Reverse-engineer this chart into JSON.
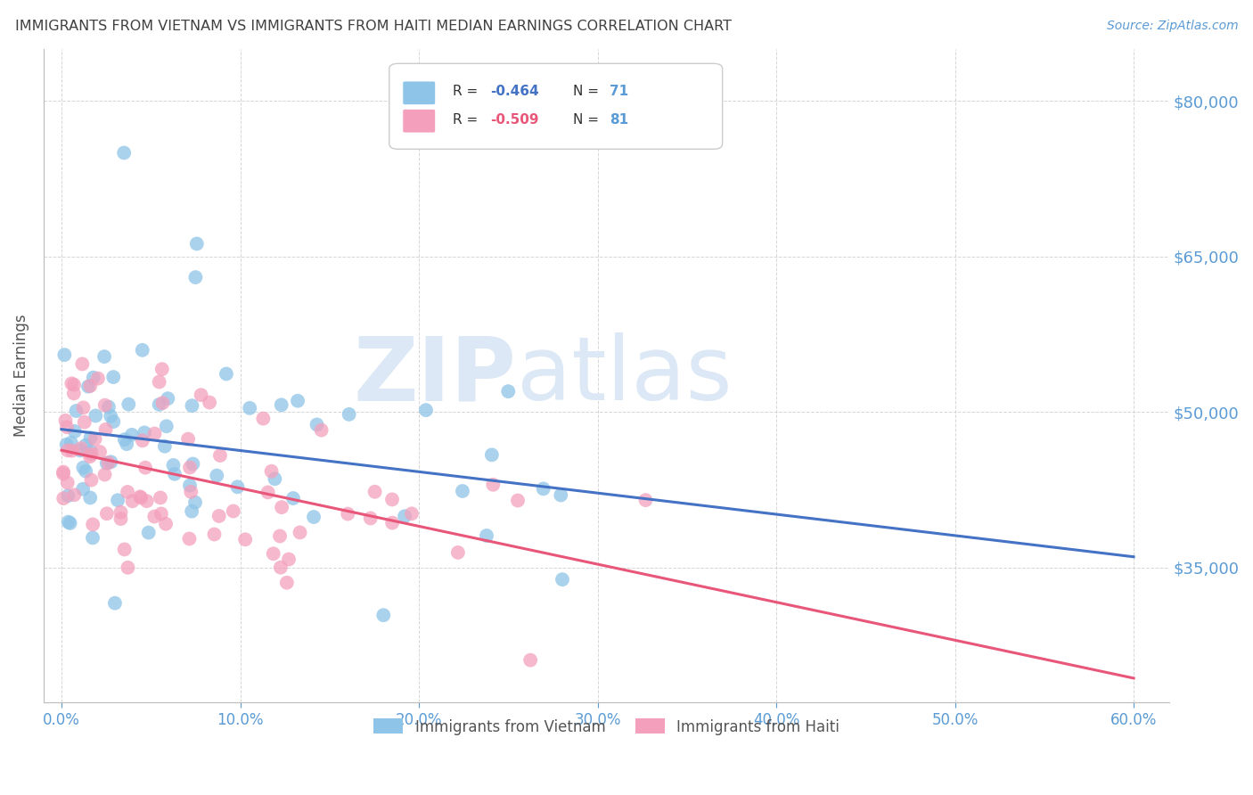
{
  "title": "IMMIGRANTS FROM VIETNAM VS IMMIGRANTS FROM HAITI MEDIAN EARNINGS CORRELATION CHART",
  "source": "Source: ZipAtlas.com",
  "ylabel": "Median Earnings",
  "xlabel_ticks": [
    "0.0%",
    "10.0%",
    "20.0%",
    "30.0%",
    "40.0%",
    "50.0%",
    "60.0%"
  ],
  "xlabel_vals": [
    0.0,
    10.0,
    20.0,
    30.0,
    40.0,
    50.0,
    60.0
  ],
  "ytick_labels": [
    "$35,000",
    "$50,000",
    "$65,000",
    "$80,000"
  ],
  "ytick_vals": [
    35000,
    50000,
    65000,
    80000
  ],
  "ylim": [
    22000,
    85000
  ],
  "xlim": [
    -1.0,
    62.0
  ],
  "legend1_label": "Immigrants from Vietnam",
  "legend2_label": "Immigrants from Haiti",
  "R1": -0.464,
  "N1": 71,
  "R2": -0.509,
  "N2": 81,
  "blue_color": "#8ec4e8",
  "pink_color": "#f4a0bc",
  "blue_line_color": "#4472c4",
  "pink_line_color": "#e8567a",
  "title_color": "#404040",
  "axis_label_color": "#555555",
  "tick_color": "#5b9bd5",
  "grid_color": "#cccccc",
  "watermark_color": "#dce8f5",
  "watermark_text": "ZIPAtlas",
  "background_color": "#ffffff",
  "vn_intercept": 48500,
  "vn_slope": -330,
  "ht_intercept": 46000,
  "ht_slope": -430
}
